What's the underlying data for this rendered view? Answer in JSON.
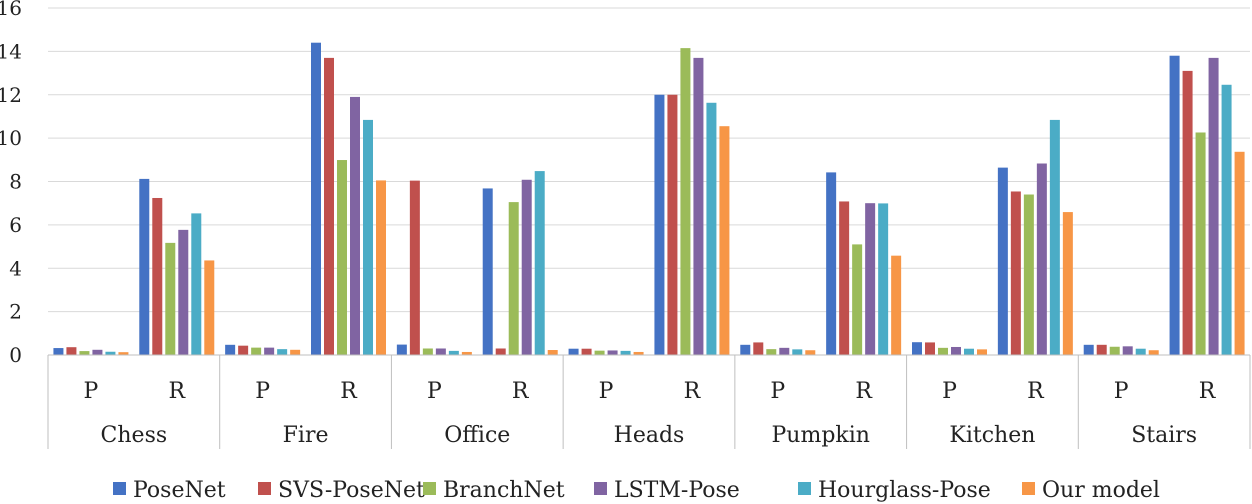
{
  "chart_data": {
    "type": "bar",
    "title": "",
    "xlabel": "",
    "ylabel": "",
    "ylim": [
      0,
      16
    ],
    "yticks": [
      0,
      2,
      4,
      6,
      8,
      10,
      12,
      14,
      16
    ],
    "grid": true,
    "legend_position": "bottom",
    "groups": [
      "Chess",
      "Fire",
      "Office",
      "Heads",
      "Pumpkin",
      "Kitchen",
      "Stairs"
    ],
    "subcategories": [
      "P",
      "R"
    ],
    "series": [
      {
        "name": "PoseNet",
        "color": "#4472C4",
        "values": [
          0.32,
          8.12,
          0.47,
          14.4,
          0.48,
          7.68,
          0.29,
          12.0,
          0.47,
          8.42,
          0.59,
          8.64,
          0.47,
          13.8
        ]
      },
      {
        "name": "SVS-PoseNet",
        "color": "#C0504D",
        "values": [
          0.36,
          7.24,
          0.43,
          13.7,
          8.04,
          0.3,
          0.29,
          12.0,
          0.58,
          7.08,
          0.58,
          7.54,
          0.47,
          13.1
        ]
      },
      {
        "name": "BranchNet",
        "color": "#9BBB59",
        "values": [
          0.18,
          5.17,
          0.34,
          8.99,
          0.3,
          7.05,
          0.2,
          14.15,
          0.27,
          5.1,
          0.33,
          7.4,
          0.38,
          10.26
        ]
      },
      {
        "name": "LSTM-Pose",
        "color": "#8064A2",
        "values": [
          0.24,
          5.77,
          0.34,
          11.9,
          0.3,
          8.08,
          0.21,
          13.7,
          0.33,
          7.0,
          0.37,
          8.83,
          0.4,
          13.7
        ]
      },
      {
        "name": "Hourglass-Pose",
        "color": "#4BACC6",
        "values": [
          0.15,
          6.53,
          0.27,
          10.84,
          0.19,
          8.48,
          0.19,
          11.63,
          0.26,
          6.99,
          0.29,
          10.84,
          0.29,
          12.46
        ]
      },
      {
        "name": "Our model",
        "color": "#F79646",
        "values": [
          0.13,
          4.36,
          0.24,
          8.05,
          0.14,
          0.23,
          0.14,
          10.55,
          0.22,
          4.58,
          0.26,
          6.59,
          0.22,
          9.37
        ]
      }
    ]
  }
}
